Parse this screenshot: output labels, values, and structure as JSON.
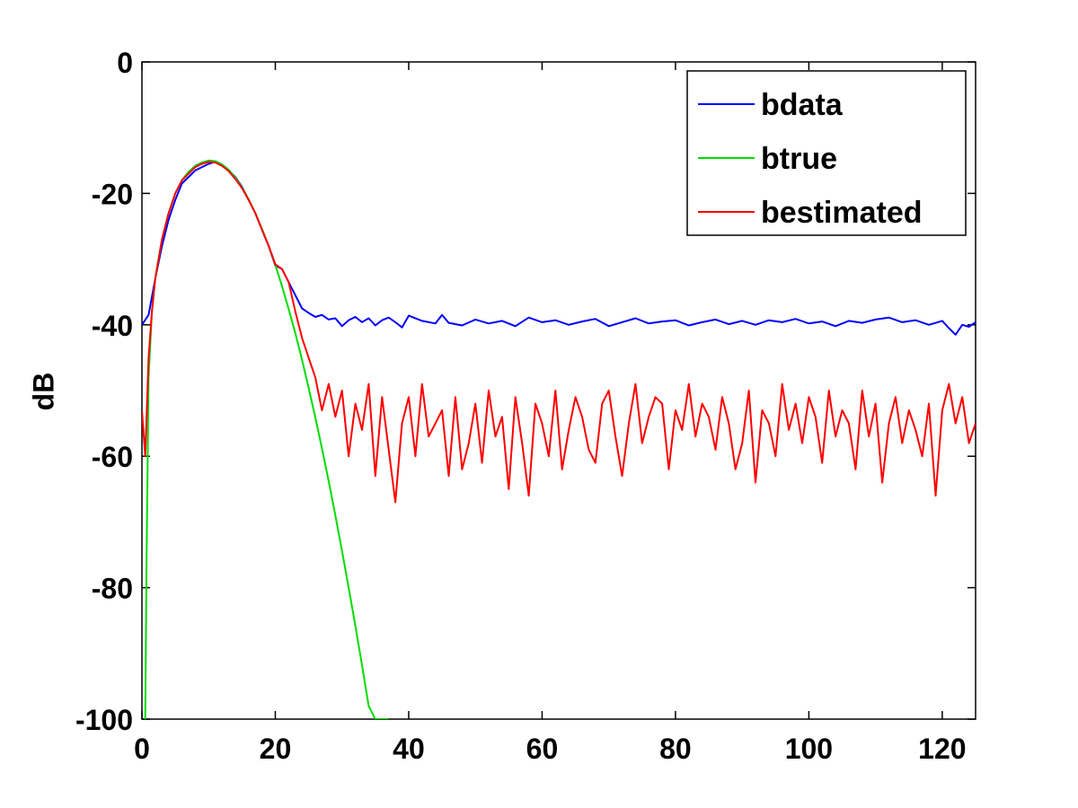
{
  "chart_data": {
    "type": "line",
    "title": "",
    "xlabel": "",
    "ylabel": "dB",
    "xlim": [
      0,
      125
    ],
    "ylim": [
      -100,
      0
    ],
    "x_ticks": [
      0,
      20,
      40,
      60,
      80,
      100,
      120
    ],
    "y_ticks": [
      0,
      -20,
      -40,
      -60,
      -80,
      -100
    ],
    "x_tick_labels": [
      "0",
      "20",
      "40",
      "60",
      "80",
      "100",
      "120"
    ],
    "y_tick_labels": [
      "0",
      "-20",
      "-40",
      "-60",
      "-80",
      "-100"
    ],
    "grid": false,
    "legend_position": "top-right",
    "series": [
      {
        "name": "bdata",
        "color": "#0000ff",
        "x": [
          0,
          1,
          2,
          3,
          4,
          5,
          6,
          7,
          8,
          9,
          10,
          11,
          12,
          13,
          14,
          15,
          16,
          17,
          18,
          19,
          20,
          21,
          22,
          23,
          24,
          25,
          26,
          27,
          28,
          29,
          30,
          31,
          32,
          33,
          34,
          35,
          36,
          37,
          38,
          39,
          40,
          42,
          44,
          45,
          46,
          48,
          50,
          52,
          54,
          56,
          58,
          60,
          62,
          64,
          66,
          68,
          70,
          72,
          74,
          76,
          78,
          80,
          82,
          84,
          86,
          88,
          90,
          92,
          94,
          96,
          98,
          100,
          102,
          104,
          106,
          108,
          110,
          112,
          114,
          116,
          118,
          120,
          121,
          122,
          123,
          124,
          125
        ],
        "y": [
          -40,
          -38.5,
          -33,
          -28,
          -24,
          -21,
          -18.5,
          -17.5,
          -16.5,
          -16,
          -15.5,
          -15.2,
          -15.6,
          -16.5,
          -17.5,
          -19,
          -21,
          -23,
          -25.5,
          -28,
          -31,
          -31.5,
          -33.5,
          -35.5,
          -37.5,
          -38.2,
          -38.8,
          -38.5,
          -39.2,
          -39,
          -40.2,
          -39.3,
          -38.8,
          -39.6,
          -39,
          -40.1,
          -39.3,
          -38.9,
          -39.6,
          -40.4,
          -38.6,
          -39.4,
          -39.8,
          -38.5,
          -39.7,
          -40.1,
          -39.2,
          -39.8,
          -39.4,
          -40.2,
          -38.9,
          -39.6,
          -39.3,
          -40.0,
          -39.5,
          -39.1,
          -40.2,
          -39.6,
          -39.0,
          -39.8,
          -39.5,
          -39.3,
          -40.1,
          -39.6,
          -39.2,
          -39.9,
          -39.4,
          -40.0,
          -39.3,
          -39.6,
          -39.1,
          -39.8,
          -39.5,
          -40.2,
          -39.4,
          -39.7,
          -39.2,
          -38.9,
          -39.6,
          -39.3,
          -40.0,
          -39.4,
          -40.5,
          -41.5,
          -40.0,
          -40.3,
          -39.6
        ]
      },
      {
        "name": "btrue",
        "color": "#00dd00",
        "x": [
          0.5,
          0.7,
          1,
          1.5,
          2,
          3,
          4,
          5,
          6,
          7,
          8,
          9,
          10,
          11,
          12,
          13,
          14,
          15,
          16,
          17,
          18,
          19,
          20,
          21,
          22,
          23,
          24,
          25,
          26,
          27,
          28,
          29,
          30,
          31,
          32,
          33,
          34,
          35,
          36,
          37
        ],
        "y": [
          -100,
          -75,
          -48,
          -38,
          -33,
          -27,
          -23,
          -20,
          -18,
          -16.7,
          -15.8,
          -15.3,
          -15.0,
          -15.1,
          -15.6,
          -16.4,
          -17.6,
          -19.1,
          -20.9,
          -23.0,
          -25.4,
          -28.0,
          -30.9,
          -34.1,
          -37.6,
          -41.3,
          -45.3,
          -49.6,
          -54.1,
          -58.8,
          -63.8,
          -69.0,
          -74.4,
          -80.0,
          -85.8,
          -91.8,
          -98.0,
          -100,
          -100,
          -100
        ]
      },
      {
        "name": "bestimated",
        "color": "#ff0000",
        "x": [
          0,
          0.5,
          1,
          1.5,
          2,
          3,
          4,
          5,
          6,
          7,
          8,
          9,
          10,
          11,
          12,
          13,
          14,
          15,
          16,
          17,
          18,
          19,
          20,
          21,
          22,
          23,
          24,
          25,
          26,
          27,
          28,
          29,
          30,
          31,
          32,
          33,
          34,
          35,
          36,
          37,
          38,
          39,
          40,
          41,
          42,
          43,
          44,
          45,
          46,
          47,
          48,
          49,
          50,
          51,
          52,
          53,
          54,
          55,
          56,
          57,
          58,
          59,
          60,
          61,
          62,
          63,
          64,
          65,
          66,
          67,
          68,
          69,
          70,
          71,
          72,
          73,
          74,
          75,
          76,
          77,
          78,
          79,
          80,
          81,
          82,
          83,
          84,
          85,
          86,
          87,
          88,
          89,
          90,
          91,
          92,
          93,
          94,
          95,
          96,
          97,
          98,
          99,
          100,
          101,
          102,
          103,
          104,
          105,
          106,
          107,
          108,
          109,
          110,
          111,
          112,
          113,
          114,
          115,
          116,
          117,
          118,
          119,
          120,
          121,
          122,
          123,
          124,
          125
        ],
        "y": [
          -53,
          -60,
          -45,
          -38,
          -33,
          -27,
          -23,
          -20,
          -18,
          -17,
          -16,
          -15.5,
          -15.2,
          -15.3,
          -15.8,
          -16.6,
          -17.8,
          -19.2,
          -21,
          -23,
          -25.5,
          -28,
          -30.8,
          -31.5,
          -33.5,
          -38,
          -42,
          -45,
          -48,
          -53,
          -49,
          -54,
          -50,
          -60,
          -52,
          -56,
          -49,
          -63,
          -51,
          -59,
          -67,
          -55,
          -51,
          -60,
          -49,
          -57,
          -55,
          -53,
          -63,
          -51,
          -62,
          -58,
          -52,
          -61,
          -50,
          -57,
          -54,
          -65,
          -51,
          -58,
          -66,
          -52,
          -55,
          -60,
          -50,
          -62,
          -56,
          -51,
          -54,
          -59,
          -61,
          -52,
          -50,
          -57,
          -63,
          -55,
          -49,
          -58,
          -54,
          -51,
          -52,
          -62,
          -53,
          -56,
          -49,
          -57,
          -52,
          -54,
          -59,
          -51,
          -55,
          -62,
          -58,
          -50,
          -64,
          -53,
          -55,
          -60,
          -49,
          -56,
          -52,
          -58,
          -51,
          -54,
          -61,
          -50,
          -57,
          -53,
          -55,
          -62,
          -50,
          -57,
          -52,
          -64,
          -55,
          -51,
          -58,
          -53,
          -56,
          -60,
          -52,
          -66,
          -53,
          -49,
          -55,
          -51,
          -58,
          -55
        ]
      }
    ]
  }
}
